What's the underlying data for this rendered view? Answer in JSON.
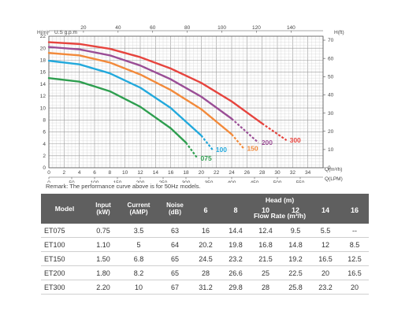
{
  "chart_data": {
    "type": "line",
    "axes": {
      "left": {
        "label": "H(m)",
        "ticks": [
          0,
          2,
          4,
          6,
          8,
          10,
          12,
          14,
          16,
          18,
          20,
          22
        ],
        "range": [
          0,
          22
        ]
      },
      "right": {
        "label": "H(ft)",
        "ticks": [
          0,
          10,
          20,
          30,
          40,
          50,
          60,
          70
        ],
        "range": [
          0,
          72.18
        ]
      },
      "top": {
        "label": "U.S g.p.m",
        "ticks": [
          0,
          20,
          40,
          60,
          80,
          100,
          120,
          140
        ],
        "range": [
          0,
          158.5
        ]
      },
      "bottom": {
        "label": "Q(m³/h)",
        "ticks": [
          0,
          2,
          4,
          6,
          8,
          10,
          12,
          14,
          16,
          18,
          20,
          22,
          24,
          26,
          28,
          30,
          32,
          34
        ],
        "range": [
          0,
          36
        ]
      },
      "bottom2": {
        "label": "Q(LPM)",
        "ticks": [
          0,
          50,
          100,
          150,
          200,
          250,
          300,
          350,
          400,
          450,
          500,
          550
        ],
        "range": [
          0,
          600
        ]
      }
    },
    "grid": true,
    "series": [
      {
        "name": "075",
        "color": "#2e9e4f",
        "x": [
          0,
          4,
          8,
          12,
          16,
          18,
          19.5
        ],
        "y": [
          15.0,
          14.4,
          12.8,
          10.2,
          6.6,
          4.2,
          1.6
        ]
      },
      {
        "name": "100",
        "color": "#23a9dc",
        "x": [
          0,
          4,
          8,
          12,
          16,
          20,
          21.5
        ],
        "y": [
          17.9,
          17.3,
          15.8,
          13.4,
          10.0,
          5.4,
          3.0
        ]
      },
      {
        "name": "150",
        "color": "#f28a3b",
        "x": [
          0,
          4,
          8,
          12,
          16,
          20,
          24,
          25.6
        ],
        "y": [
          19.2,
          18.8,
          17.6,
          15.6,
          13.0,
          9.8,
          5.6,
          3.2
        ]
      },
      {
        "name": "200",
        "color": "#9a4e96",
        "x": [
          0,
          4,
          8,
          12,
          16,
          20,
          24,
          27.5
        ],
        "y": [
          20.2,
          19.8,
          18.8,
          17.1,
          14.8,
          11.9,
          8.2,
          4.2
        ]
      },
      {
        "name": "300",
        "color": "#e6443e",
        "x": [
          0,
          4,
          8,
          12,
          16,
          20,
          24,
          28,
          31.2
        ],
        "y": [
          21.0,
          20.7,
          19.9,
          18.5,
          16.6,
          14.2,
          11.1,
          7.4,
          4.6
        ]
      }
    ]
  },
  "remark": "Remark: The performance curve above is for 50Hz models.",
  "table": {
    "headers": {
      "model": "Model",
      "input": [
        "Input",
        "(kW)"
      ],
      "current": [
        "Current",
        "(AMP)"
      ],
      "noise": [
        "Noise",
        "(dB)"
      ],
      "head": "Head (m)",
      "flow": "Flow Rate (m³/h)",
      "head_values": [
        "6",
        "8",
        "10",
        "12",
        "14",
        "16"
      ]
    },
    "rows": [
      {
        "model": "ET075",
        "input": "0.75",
        "current": "3.5",
        "noise": "63",
        "flow": [
          "16",
          "14.4",
          "12.4",
          "9.5",
          "5.5",
          "--"
        ]
      },
      {
        "model": "ET100",
        "input": "1.10",
        "current": "5",
        "noise": "64",
        "flow": [
          "20.2",
          "19.8",
          "16.8",
          "14.8",
          "12",
          "8.5"
        ]
      },
      {
        "model": "ET150",
        "input": "1.50",
        "current": "6.8",
        "noise": "65",
        "flow": [
          "24.5",
          "23.2",
          "21.5",
          "19.2",
          "16.5",
          "12.5"
        ]
      },
      {
        "model": "ET200",
        "input": "1.80",
        "current": "8.2",
        "noise": "65",
        "flow": [
          "28",
          "26.6",
          "25",
          "22.5",
          "20",
          "16.5"
        ]
      },
      {
        "model": "ET300",
        "input": "2.20",
        "current": "10",
        "noise": "67",
        "flow": [
          "31.2",
          "29.8",
          "28",
          "25.8",
          "23.2",
          "20"
        ]
      }
    ]
  }
}
